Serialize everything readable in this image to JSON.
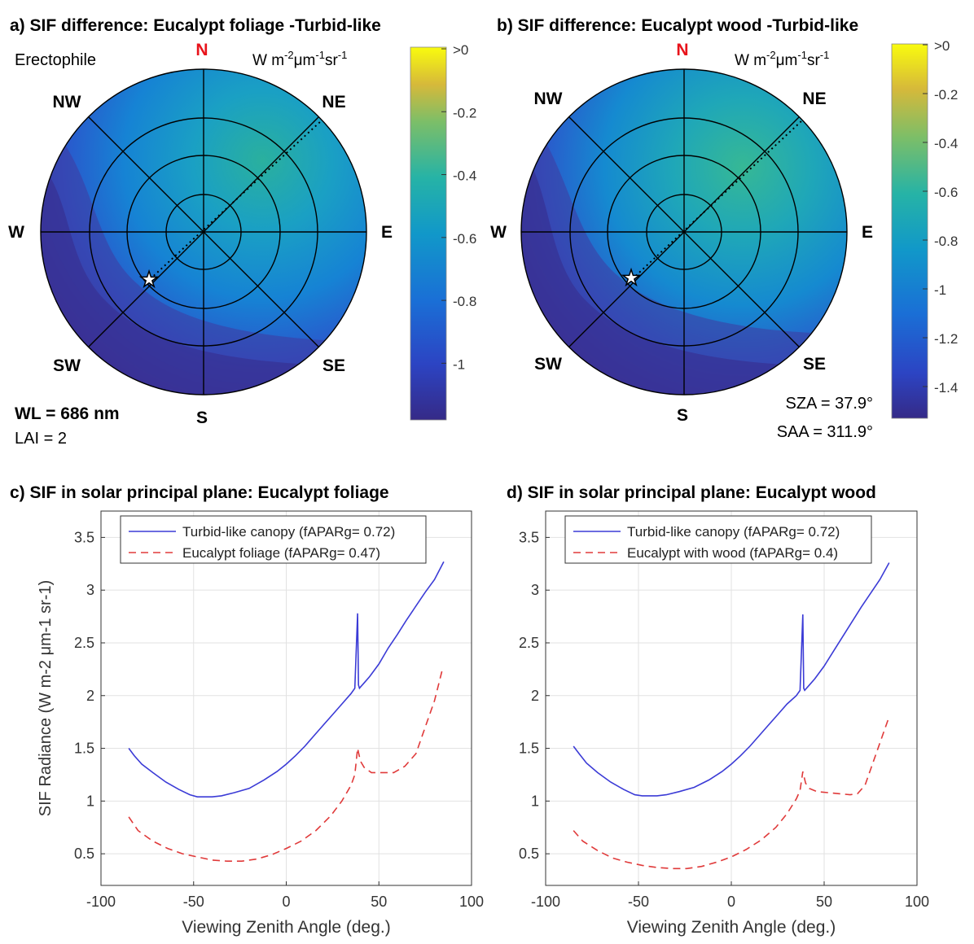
{
  "panels": {
    "a": {
      "title": "a) SIF difference: Eucalypt foliage -Turbid-like",
      "units": "W m-2μm-1sr-1",
      "top_left_label": "Erectophile",
      "bottom_left_label_1": "WL = 686 nm",
      "bottom_left_label_2": "LAI = 2",
      "directions": {
        "N": "N",
        "NE": "NE",
        "E": "E",
        "SE": "SE",
        "S": "S",
        "SW": "SW",
        "W": "W",
        "NW": "NW"
      },
      "colorbar_ticks": [
        ">0",
        "-0.2",
        "-0.4",
        "-0.6",
        "-0.8",
        "-1"
      ]
    },
    "b": {
      "title": "b) SIF difference: Eucalypt wood -Turbid-like",
      "units": "W m-2μm-1sr-1",
      "bottom_right_label_1": "SZA = 37.9°",
      "bottom_right_label_2": "SAA = 311.9°",
      "directions": {
        "N": "N",
        "NE": "NE",
        "E": "E",
        "SE": "SE",
        "S": "S",
        "SW": "SW",
        "W": "W",
        "NW": "NW"
      },
      "colorbar_ticks": [
        ">0",
        "-0.2",
        "-0.4",
        "-0.6",
        "-0.8",
        "-1",
        "-1.2",
        "-1.4"
      ]
    },
    "c": {
      "title": "c) SIF in solar principal plane: Eucalypt foliage"
    },
    "d": {
      "title": "d) SIF in solar principal plane: Eucalypt wood"
    }
  },
  "colors": {
    "turbid": "#3b3bd6",
    "eucalypt": "#e03a3a",
    "north": "#e8131b",
    "parula_dark": "#352a87",
    "parula_yellow": "#f9fb0e"
  },
  "chart_data": [
    {
      "id": "c",
      "type": "line",
      "title": "c) SIF in solar principal plane: Eucalypt foliage",
      "xlabel": "Viewing Zenith Angle (deg.)",
      "ylabel": "SIF Radiance (W m-2 μm-1 sr-1)",
      "xlim": [
        -100,
        100
      ],
      "ylim": [
        0.2,
        3.75
      ],
      "xticks": [
        -100,
        -50,
        0,
        50,
        100
      ],
      "yticks": [
        0.5,
        1,
        1.5,
        2,
        2.5,
        3,
        3.5
      ],
      "grid": true,
      "legend_position": "top",
      "series": [
        {
          "name": "Turbid-like canopy (fAPARg= 0.72)",
          "style": "solid",
          "color": "#3b3bd6",
          "x": [
            -85,
            -82,
            -78,
            -72,
            -65,
            -58,
            -52,
            -48,
            -44,
            -40,
            -35,
            -28,
            -20,
            -12,
            -5,
            0,
            5,
            10,
            15,
            20,
            25,
            30,
            35,
            37,
            38.5,
            39,
            39.5,
            40,
            42,
            45,
            50,
            55,
            60,
            65,
            70,
            75,
            80,
            85
          ],
          "y": [
            1.5,
            1.43,
            1.35,
            1.27,
            1.18,
            1.11,
            1.06,
            1.04,
            1.04,
            1.04,
            1.05,
            1.08,
            1.12,
            1.2,
            1.28,
            1.35,
            1.43,
            1.52,
            1.62,
            1.72,
            1.82,
            1.92,
            2.02,
            2.07,
            2.78,
            2.1,
            2.07,
            2.08,
            2.12,
            2.18,
            2.3,
            2.45,
            2.58,
            2.72,
            2.85,
            2.98,
            3.1,
            3.27
          ]
        },
        {
          "name": "Eucalypt foliage (fAPARg= 0.47)",
          "style": "dashed",
          "color": "#e03a3a",
          "x": [
            -85,
            -80,
            -72,
            -64,
            -56,
            -48,
            -40,
            -32,
            -24,
            -16,
            -8,
            0,
            8,
            16,
            24,
            30,
            35,
            37,
            38.5,
            40,
            42,
            46,
            52,
            58,
            64,
            70,
            75,
            80,
            84
          ],
          "y": [
            0.85,
            0.72,
            0.62,
            0.55,
            0.5,
            0.47,
            0.44,
            0.43,
            0.43,
            0.45,
            0.49,
            0.55,
            0.62,
            0.72,
            0.86,
            1.0,
            1.15,
            1.25,
            1.5,
            1.38,
            1.32,
            1.27,
            1.27,
            1.27,
            1.33,
            1.45,
            1.7,
            1.95,
            2.23
          ]
        }
      ]
    },
    {
      "id": "d",
      "type": "line",
      "title": "d) SIF in solar principal plane: Eucalypt wood",
      "xlabel": "Viewing Zenith Angle (deg.)",
      "ylabel": "",
      "xlim": [
        -100,
        100
      ],
      "ylim": [
        0.2,
        3.75
      ],
      "xticks": [
        -100,
        -50,
        0,
        50,
        100
      ],
      "yticks": [
        0.5,
        1,
        1.5,
        2,
        2.5,
        3,
        3.5
      ],
      "grid": true,
      "legend_position": "top",
      "series": [
        {
          "name": "Turbid-like canopy (fAPARg= 0.72)",
          "style": "solid",
          "color": "#3b3bd6",
          "x": [
            -85,
            -82,
            -78,
            -72,
            -65,
            -58,
            -52,
            -48,
            -44,
            -40,
            -35,
            -28,
            -20,
            -12,
            -5,
            0,
            5,
            10,
            15,
            20,
            25,
            30,
            35,
            37,
            38.5,
            39,
            39.5,
            40,
            42,
            45,
            50,
            55,
            60,
            65,
            70,
            75,
            80,
            85
          ],
          "y": [
            1.52,
            1.45,
            1.36,
            1.27,
            1.18,
            1.11,
            1.06,
            1.05,
            1.05,
            1.05,
            1.06,
            1.09,
            1.13,
            1.2,
            1.28,
            1.35,
            1.43,
            1.52,
            1.62,
            1.72,
            1.82,
            1.92,
            2.0,
            2.05,
            2.77,
            2.07,
            2.05,
            2.06,
            2.1,
            2.16,
            2.28,
            2.42,
            2.56,
            2.7,
            2.84,
            2.97,
            3.1,
            3.26
          ]
        },
        {
          "name": "Eucalypt with wood (fAPARg= 0.4)",
          "style": "dashed",
          "color": "#e03a3a",
          "x": [
            -85,
            -80,
            -72,
            -64,
            -56,
            -48,
            -40,
            -32,
            -24,
            -16,
            -8,
            0,
            8,
            16,
            24,
            30,
            35,
            37,
            38.5,
            40,
            42,
            46,
            52,
            58,
            64,
            68,
            72,
            76,
            80,
            85
          ],
          "y": [
            0.72,
            0.62,
            0.53,
            0.46,
            0.42,
            0.39,
            0.37,
            0.36,
            0.36,
            0.38,
            0.42,
            0.47,
            0.54,
            0.63,
            0.75,
            0.88,
            1.02,
            1.1,
            1.28,
            1.17,
            1.12,
            1.09,
            1.08,
            1.07,
            1.06,
            1.07,
            1.15,
            1.35,
            1.55,
            1.8
          ]
        }
      ]
    }
  ]
}
